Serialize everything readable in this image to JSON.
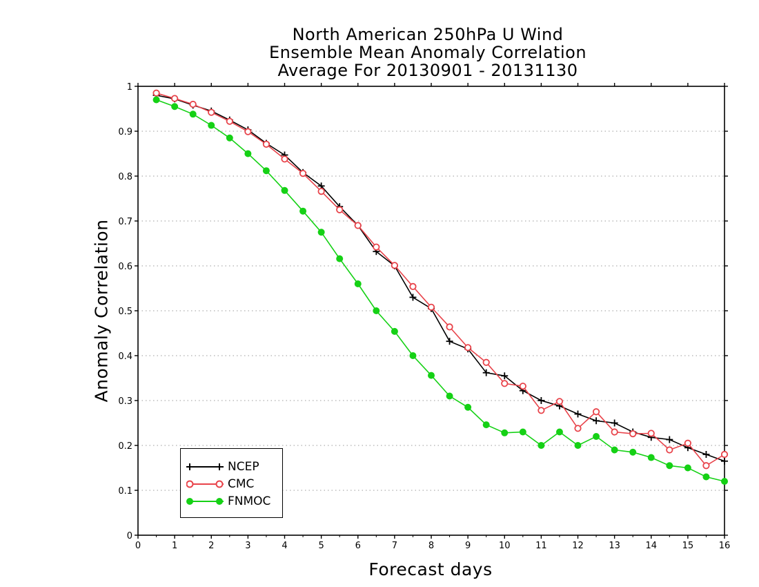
{
  "chart_data": {
    "type": "line",
    "title": [
      "North American 250hPa U Wind",
      "Ensemble Mean Anomaly Correlation",
      "Average For 20130901 - 20131130"
    ],
    "xlabel": "Forecast days",
    "ylabel": "Anomaly Correlation",
    "xlim": [
      0,
      16
    ],
    "ylim": [
      0,
      1
    ],
    "xticks": [
      "0",
      "1",
      "2",
      "3",
      "4",
      "5",
      "6",
      "7",
      "8",
      "9",
      "10",
      "11",
      "12",
      "13",
      "14",
      "15",
      "16"
    ],
    "yticks": [
      "0",
      "0.1",
      "0.2",
      "0.3",
      "0.4",
      "0.5",
      "0.6",
      "0.7",
      "0.8",
      "0.9",
      "1"
    ],
    "grid": "horizontal dotted",
    "legend_position": "bottom-left",
    "x": [
      0.5,
      1,
      1.5,
      2,
      2.5,
      3,
      3.5,
      4,
      4.5,
      5,
      5.5,
      6,
      6.5,
      7,
      7.5,
      8,
      8.5,
      9,
      9.5,
      10,
      10.5,
      11,
      11.5,
      12,
      12.5,
      13,
      13.5,
      14,
      14.5,
      15,
      15.5,
      16
    ],
    "series": [
      {
        "name": "NCEP",
        "color": "#000000",
        "marker": "plus",
        "values": [
          0.98,
          0.972,
          0.958,
          0.945,
          0.925,
          0.903,
          0.873,
          0.847,
          0.808,
          0.778,
          0.732,
          0.69,
          0.632,
          0.6,
          0.53,
          0.505,
          0.432,
          0.415,
          0.362,
          0.355,
          0.322,
          0.3,
          0.288,
          0.27,
          0.255,
          0.25,
          0.23,
          0.218,
          0.213,
          0.195,
          0.18,
          0.165
        ]
      },
      {
        "name": "CMC",
        "color": "#e8434a",
        "marker": "open-circle",
        "values": [
          0.985,
          0.973,
          0.96,
          0.942,
          0.922,
          0.899,
          0.871,
          0.838,
          0.806,
          0.766,
          0.725,
          0.69,
          0.642,
          0.601,
          0.554,
          0.508,
          0.464,
          0.418,
          0.385,
          0.338,
          0.332,
          0.278,
          0.298,
          0.238,
          0.275,
          0.23,
          0.226,
          0.227,
          0.19,
          0.205,
          0.155,
          0.18
        ]
      },
      {
        "name": "FNMOC",
        "color": "#15d115",
        "marker": "filled-circle",
        "values": [
          0.97,
          0.955,
          0.938,
          0.913,
          0.885,
          0.85,
          0.812,
          0.768,
          0.722,
          0.675,
          0.616,
          0.56,
          0.5,
          0.454,
          0.4,
          0.356,
          0.31,
          0.285,
          0.246,
          0.228,
          0.23,
          0.2,
          0.23,
          0.2,
          0.22,
          0.19,
          0.185,
          0.173,
          0.155,
          0.15,
          0.13,
          0.12
        ]
      }
    ]
  }
}
